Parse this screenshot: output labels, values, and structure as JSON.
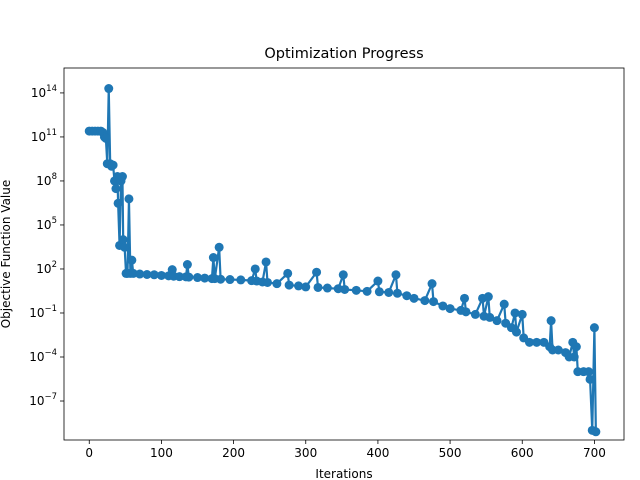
{
  "chart_data": {
    "type": "line",
    "title": "Optimization Progress",
    "xlabel": "Iterations",
    "ylabel": "Objective Function Value",
    "log_y": true,
    "grid": false,
    "xlim": [
      -35,
      741
    ],
    "ylim": [
      2.2e-10,
      5000000000000000.0
    ],
    "xticks": [
      0,
      100,
      200,
      300,
      400,
      500,
      600,
      700
    ],
    "yticks": [
      {
        "value": 1e-07,
        "label": "10",
        "exponent": "−7"
      },
      {
        "value": 0.0001,
        "label": "10",
        "exponent": "−4"
      },
      {
        "value": 0.1,
        "label": "10",
        "exponent": "−1"
      },
      {
        "value": 100,
        "label": "10",
        "exponent": "2"
      },
      {
        "value": 100000,
        "label": "10",
        "exponent": "5"
      },
      {
        "value": 100000000,
        "label": "10",
        "exponent": "8"
      },
      {
        "value": 100000000000,
        "label": "10",
        "exponent": "11"
      },
      {
        "value": 100000000000000,
        "label": "10",
        "exponent": "14"
      }
    ],
    "series": [
      {
        "color": "#1f77b4",
        "x": [
          0,
          4,
          8,
          12,
          16,
          19,
          21,
          23,
          25,
          27,
          29,
          31,
          33,
          35,
          37,
          39,
          40,
          42,
          44,
          46,
          47,
          49,
          51,
          53,
          55,
          57,
          59,
          61,
          70,
          80,
          90,
          100,
          110,
          115,
          117,
          125,
          134,
          136,
          138,
          150,
          160,
          170,
          172,
          174,
          180,
          182,
          195,
          210,
          225,
          230,
          232,
          240,
          245,
          247,
          260,
          275,
          277,
          290,
          300,
          315,
          317,
          330,
          345,
          352,
          354,
          370,
          385,
          400,
          402,
          415,
          425,
          427,
          440,
          450,
          465,
          475,
          477,
          490,
          500,
          515,
          520,
          522,
          535,
          545,
          547,
          553,
          555,
          565,
          575,
          577,
          585,
          590,
          592,
          600,
          602,
          610,
          620,
          630,
          638,
          640,
          642,
          650,
          660,
          665,
          670,
          672,
          675,
          677,
          685,
          692,
          694,
          697,
          700,
          702
        ],
        "values": [
          250000000000.0,
          250000000000.0,
          250000000000.0,
          250000000000.0,
          250000000000.0,
          200000000000.0,
          100000000000.0,
          80000000000.0,
          1500000000.0,
          200000000000000.0,
          1500000000.0,
          1000000000.0,
          1200000000.0,
          100000000.0,
          30000000.0,
          200000000.0,
          3000000.0,
          4000,
          100000000.0,
          200000000.0,
          10000,
          3000,
          50,
          50,
          6000000.0,
          50,
          400,
          50,
          45,
          42,
          40,
          36,
          34,
          90,
          32,
          30,
          29,
          200,
          28,
          26,
          24,
          22,
          600,
          22,
          3000,
          20,
          19,
          18,
          16,
          100,
          15,
          13,
          300,
          12,
          10,
          50,
          8,
          7,
          6,
          60,
          5.5,
          5,
          4.5,
          40,
          4,
          3.5,
          3,
          15,
          2.8,
          2.5,
          40,
          2.2,
          1.5,
          1,
          0.7,
          10,
          0.6,
          0.3,
          0.2,
          0.15,
          1,
          0.12,
          0.08,
          1,
          0.06,
          1.3,
          0.05,
          0.03,
          0.4,
          0.02,
          0.01,
          0.1,
          0.005,
          0.08,
          0.002,
          0.001,
          0.001,
          0.001,
          0.0005,
          0.03,
          0.0003,
          0.0003,
          0.0002,
          0.0001,
          0.001,
          0.0001,
          0.0005,
          1e-05,
          1e-05,
          1e-05,
          3e-06,
          1e-09,
          0.01,
          8e-10
        ]
      }
    ]
  }
}
